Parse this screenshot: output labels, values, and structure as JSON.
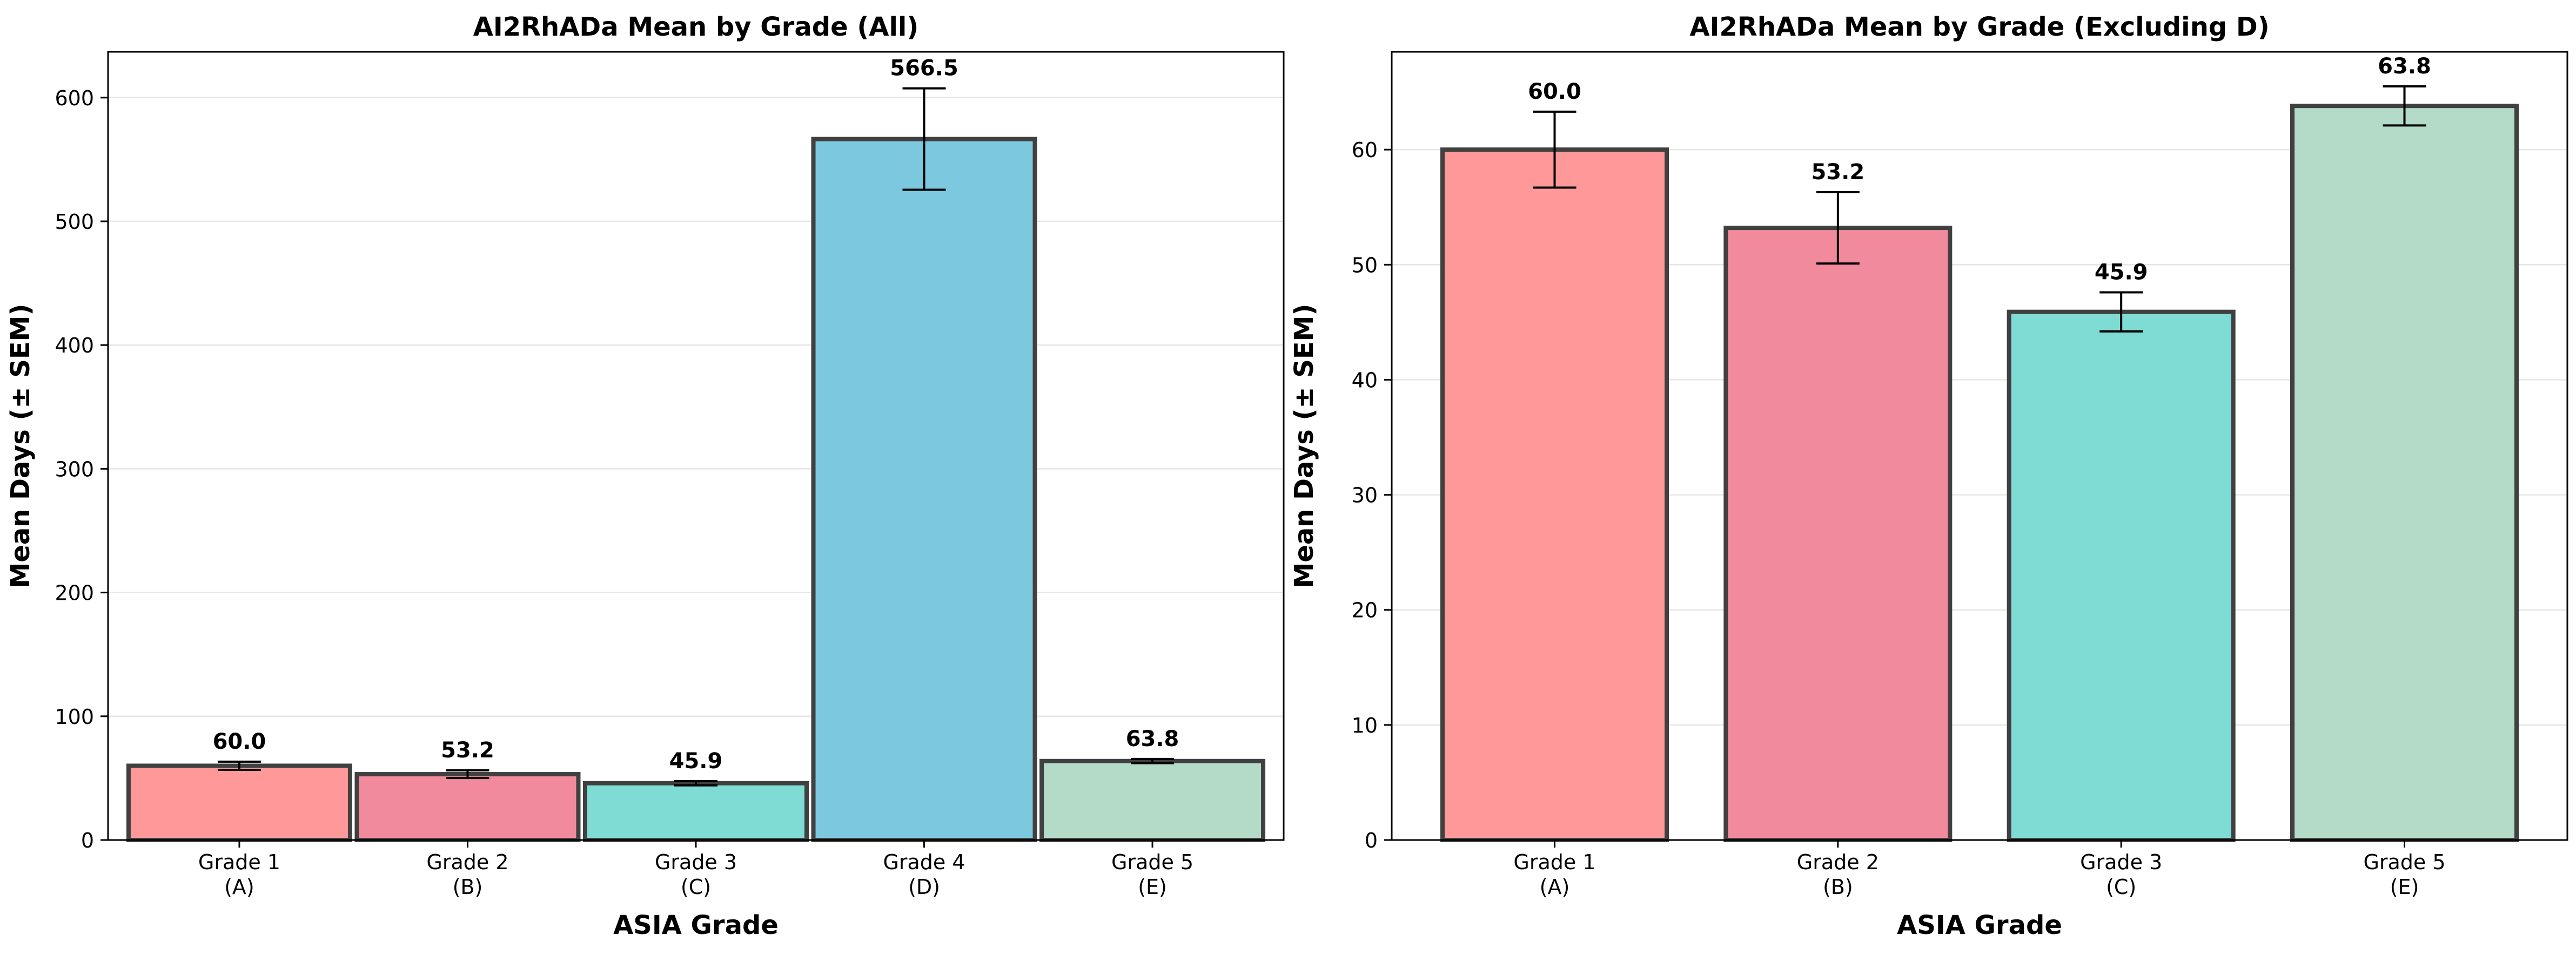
{
  "chart_data": [
    {
      "type": "bar",
      "title": "AI2RhADa Mean by Grade (All)",
      "xlabel": "ASIA Grade",
      "ylabel": "Mean Days (± SEM)",
      "categories": [
        [
          "Grade 1",
          "(A)"
        ],
        [
          "Grade 2",
          "(B)"
        ],
        [
          "Grade 3",
          "(C)"
        ],
        [
          "Grade 4",
          "(D)"
        ],
        [
          "Grade 5",
          "(E)"
        ]
      ],
      "values": [
        60.0,
        53.2,
        45.9,
        566.5,
        63.8
      ],
      "sem": [
        3.3,
        3.1,
        1.7,
        41.0,
        1.7
      ],
      "value_labels": [
        "60.0",
        "53.2",
        "45.9",
        "566.5",
        "63.8"
      ],
      "colors": [
        "#ff9999",
        "#f08a9c",
        "#7fdcd5",
        "#7cc9df",
        "#b3dbc8"
      ],
      "ylim": [
        0,
        637
      ],
      "yticks": [
        0,
        100,
        200,
        300,
        400,
        500,
        600
      ],
      "grid": "y"
    },
    {
      "type": "bar",
      "title": "AI2RhADa Mean by Grade (Excluding D)",
      "xlabel": "ASIA Grade",
      "ylabel": "Mean Days (± SEM)",
      "categories": [
        [
          "Grade 1",
          "(A)"
        ],
        [
          "Grade 2",
          "(B)"
        ],
        [
          "Grade 3",
          "(C)"
        ],
        [
          "Grade 5",
          "(E)"
        ]
      ],
      "values": [
        60.0,
        53.2,
        45.9,
        63.8
      ],
      "sem": [
        3.3,
        3.1,
        1.7,
        1.7
      ],
      "value_labels": [
        "60.0",
        "53.2",
        "45.9",
        "63.8"
      ],
      "colors": [
        "#ff9999",
        "#f08a9c",
        "#7fdcd5",
        "#b3dbc8"
      ],
      "ylim": [
        0,
        68.5
      ],
      "yticks": [
        0,
        10,
        20,
        30,
        40,
        50,
        60
      ],
      "grid": "y"
    }
  ]
}
